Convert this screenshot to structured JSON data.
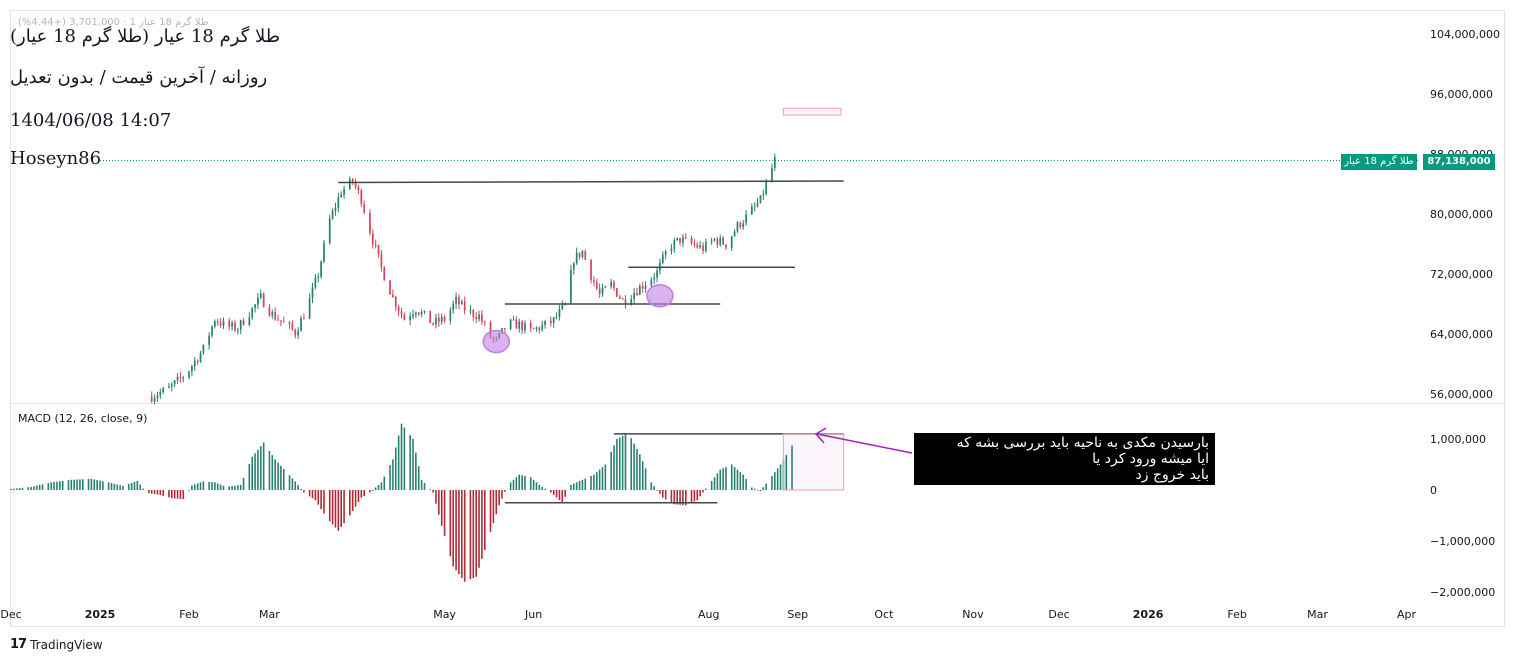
{
  "header": {
    "faint_line": "طلا گرم 18 عیار 1 · 3,701,000 (+4.44%)",
    "title": "طلا گرم 18 عیار (طلا گرم 18 عیار)",
    "subtitle": "روزانه / آخرین قیمت / بدون تعدیل",
    "datetime": "1404/06/08 14:07",
    "author": "Hoseyn86"
  },
  "macd_label": "MACD (12, 26, close, 9)",
  "price_tag": {
    "name": "طلا گرم 18 عیار",
    "value": "87,138,000"
  },
  "note_lines": [
    "بارسیدن مکدی به ناحیه باید بررسی بشه که",
    "ایا میشه ورود کرد یا",
    "باید خروج زد"
  ],
  "branding": "TradingView",
  "colors": {
    "up": "#26806f",
    "down": "#d1465a",
    "macd_pos": "#26806f",
    "macd_neg": "#b22833",
    "last_price": "#089981",
    "ellipse": "#c27ee3",
    "arrow": "#9c27b0"
  },
  "chart_data": [
    {
      "type": "candlestick",
      "title": "طلا گرم 18 عیار",
      "y_ticks": [
        56000000,
        64000000,
        72000000,
        80000000,
        88000000,
        96000000,
        104000000
      ],
      "y_tick_labels": [
        "56,000,000",
        "64,000,000",
        "72,000,000",
        "80,000,000",
        "88,000,000",
        "96,000,000",
        "104,000,000"
      ],
      "ylim": [
        54000000,
        106000000
      ],
      "x_tick_labels": [
        "Dec",
        "2025",
        "Feb",
        "Mar",
        "May",
        "Jun",
        "Aug",
        "Sep",
        "Oct",
        "Nov",
        "Dec",
        "2026",
        "Feb",
        "Mar",
        "Apr"
      ],
      "x_tick_dates": [
        "2024-12-01",
        "2025-01-01",
        "2025-02-01",
        "2025-03-01",
        "2025-05-01",
        "2025-06-01",
        "2025-08-01",
        "2025-09-01",
        "2025-10-01",
        "2025-11-01",
        "2025-12-01",
        "2026-01-01",
        "2026-02-01",
        "2026-03-01",
        "2026-04-01"
      ],
      "xlim": [
        "2024-12-01",
        "2026-04-05"
      ],
      "last_price": 87138000,
      "close_series": [
        [
          "2025-01-19",
          55700000
        ],
        [
          "2025-01-25",
          56700000
        ],
        [
          "2025-01-31",
          58700000
        ],
        [
          "2025-02-06",
          62000000
        ],
        [
          "2025-02-10",
          66000000
        ],
        [
          "2025-02-14",
          65000000
        ],
        [
          "2025-02-18",
          64800000
        ],
        [
          "2025-02-22",
          66800000
        ],
        [
          "2025-02-26",
          68800000
        ],
        [
          "2025-03-02",
          66600000
        ],
        [
          "2025-03-06",
          65400000
        ],
        [
          "2025-03-10",
          64200000
        ],
        [
          "2025-03-14",
          67400000
        ],
        [
          "2025-03-18",
          72000000
        ],
        [
          "2025-03-22",
          79200000
        ],
        [
          "2025-03-26",
          83000000
        ],
        [
          "2025-03-30",
          84400000
        ],
        [
          "2025-04-02",
          82000000
        ],
        [
          "2025-04-05",
          77800000
        ],
        [
          "2025-04-09",
          72800000
        ],
        [
          "2025-04-13",
          68800000
        ],
        [
          "2025-04-17",
          66000000
        ],
        [
          "2025-04-21",
          67400000
        ],
        [
          "2025-04-27",
          65400000
        ],
        [
          "2025-05-01",
          66000000
        ],
        [
          "2025-05-05",
          68400000
        ],
        [
          "2025-05-09",
          67000000
        ],
        [
          "2025-05-13",
          66400000
        ],
        [
          "2025-05-17",
          63600000
        ],
        [
          "2025-05-19",
          63000000
        ],
        [
          "2025-05-23",
          65400000
        ],
        [
          "2025-05-27",
          65200000
        ],
        [
          "2025-05-31",
          64400000
        ],
        [
          "2025-06-04",
          65000000
        ],
        [
          "2025-06-08",
          65800000
        ],
        [
          "2025-06-12",
          67800000
        ],
        [
          "2025-06-15",
          74000000
        ],
        [
          "2025-06-18",
          75000000
        ],
        [
          "2025-06-21",
          71800000
        ],
        [
          "2025-06-24",
          69200000
        ],
        [
          "2025-06-28",
          70600000
        ],
        [
          "2025-07-02",
          68400000
        ],
        [
          "2025-07-06",
          69600000
        ],
        [
          "2025-07-10",
          70800000
        ],
        [
          "2025-07-14",
          72200000
        ],
        [
          "2025-07-18",
          75600000
        ],
        [
          "2025-07-22",
          76600000
        ],
        [
          "2025-07-26",
          76000000
        ],
        [
          "2025-07-30",
          75400000
        ],
        [
          "2025-08-03",
          76600000
        ],
        [
          "2025-08-07",
          76000000
        ],
        [
          "2025-08-11",
          78400000
        ],
        [
          "2025-08-15",
          80000000
        ],
        [
          "2025-08-19",
          81800000
        ],
        [
          "2025-08-21",
          84000000
        ],
        [
          "2025-08-24",
          87138000
        ]
      ],
      "horizontal_levels": [
        {
          "from": "2025-03-25",
          "to": "2025-09-17",
          "price_from": 84200000,
          "price_to": 84400000
        },
        {
          "from": "2025-05-22",
          "to": "2025-08-05",
          "price": 68000000
        },
        {
          "from": "2025-07-04",
          "to": "2025-08-31",
          "price": 72900000
        }
      ],
      "highlight_zones": [
        {
          "from": "2025-08-27",
          "to": "2025-09-16",
          "price_low": 93200000,
          "price_high": 94100000
        }
      ],
      "ellipses": [
        {
          "date": "2025-05-19",
          "price": 63000000
        },
        {
          "date": "2025-07-15",
          "price": 69100000
        }
      ]
    },
    {
      "type": "bar",
      "title": "MACD (12, 26, close, 9)",
      "y_ticks": [
        1000000,
        0,
        -1000000,
        -2000000
      ],
      "y_tick_labels": [
        "1,000,000",
        "0",
        "−1,000,000",
        "−2,000,000"
      ],
      "ylim": [
        -2400000,
        1700000
      ],
      "series": [
        {
          "values": [
            [
              "2024-12-01",
              20000
            ],
            [
              "2024-12-08",
              60000
            ],
            [
              "2024-12-15",
              150000
            ],
            [
              "2024-12-22",
              200000
            ],
            [
              "2024-12-29",
              220000
            ],
            [
              "2025-01-04",
              150000
            ],
            [
              "2025-01-09",
              80000
            ],
            [
              "2025-01-14",
              180000
            ],
            [
              "2025-01-17",
              -50000
            ],
            [
              "2025-01-22",
              -100000
            ],
            [
              "2025-01-26",
              -160000
            ],
            [
              "2025-01-30",
              -180000
            ],
            [
              "2025-02-02",
              90000
            ],
            [
              "2025-02-06",
              170000
            ],
            [
              "2025-02-10",
              150000
            ],
            [
              "2025-02-14",
              60000
            ],
            [
              "2025-02-19",
              100000
            ],
            [
              "2025-02-23",
              650000
            ],
            [
              "2025-02-27",
              930000
            ],
            [
              "2025-03-03",
              600000
            ],
            [
              "2025-03-07",
              350000
            ],
            [
              "2025-03-10",
              170000
            ],
            [
              "2025-03-13",
              -50000
            ],
            [
              "2025-03-17",
              -200000
            ],
            [
              "2025-03-21",
              -550000
            ],
            [
              "2025-03-25",
              -800000
            ],
            [
              "2025-03-29",
              -500000
            ],
            [
              "2025-04-02",
              -150000
            ],
            [
              "2025-04-05",
              -50000
            ],
            [
              "2025-04-09",
              150000
            ],
            [
              "2025-04-13",
              600000
            ],
            [
              "2025-04-16",
              1300000
            ],
            [
              "2025-04-20",
              1000000
            ],
            [
              "2025-04-23",
              200000
            ],
            [
              "2025-04-27",
              -50000
            ],
            [
              "2025-04-30",
              -700000
            ],
            [
              "2025-05-04",
              -1500000
            ],
            [
              "2025-05-08",
              -1800000
            ],
            [
              "2025-05-12",
              -1700000
            ],
            [
              "2025-05-16",
              -1000000
            ],
            [
              "2025-05-20",
              -300000
            ],
            [
              "2025-05-23",
              100000
            ],
            [
              "2025-05-27",
              300000
            ],
            [
              "2025-05-31",
              250000
            ],
            [
              "2025-06-03",
              100000
            ],
            [
              "2025-06-07",
              -50000
            ],
            [
              "2025-06-11",
              -250000
            ],
            [
              "2025-06-14",
              100000
            ],
            [
              "2025-06-18",
              200000
            ],
            [
              "2025-06-22",
              300000
            ],
            [
              "2025-06-26",
              500000
            ],
            [
              "2025-06-30",
              1000000
            ],
            [
              "2025-07-04",
              1120000
            ],
            [
              "2025-07-08",
              700000
            ],
            [
              "2025-07-12",
              150000
            ],
            [
              "2025-07-16",
              -150000
            ],
            [
              "2025-07-20",
              -280000
            ],
            [
              "2025-07-24",
              -300000
            ],
            [
              "2025-07-28",
              -200000
            ],
            [
              "2025-08-01",
              100000
            ],
            [
              "2025-08-05",
              400000
            ],
            [
              "2025-08-09",
              500000
            ],
            [
              "2025-08-13",
              300000
            ],
            [
              "2025-08-16",
              50000
            ],
            [
              "2025-08-19",
              -20000
            ],
            [
              "2025-08-22",
              200000
            ],
            [
              "2025-08-26",
              500000
            ],
            [
              "2025-08-30",
              870000
            ]
          ]
        }
      ],
      "trend_lines": [
        {
          "from": "2025-06-29",
          "to": "2025-09-17",
          "value_from": 1100000,
          "value_to": 1100000
        },
        {
          "from": "2025-05-22",
          "to": "2025-08-04",
          "value_from": -250000,
          "value_to": -250000
        }
      ],
      "highlight_zones": [
        {
          "from": "2025-08-27",
          "to": "2025-09-17",
          "value_low": 0,
          "value_high": 1100000
        }
      ]
    }
  ]
}
